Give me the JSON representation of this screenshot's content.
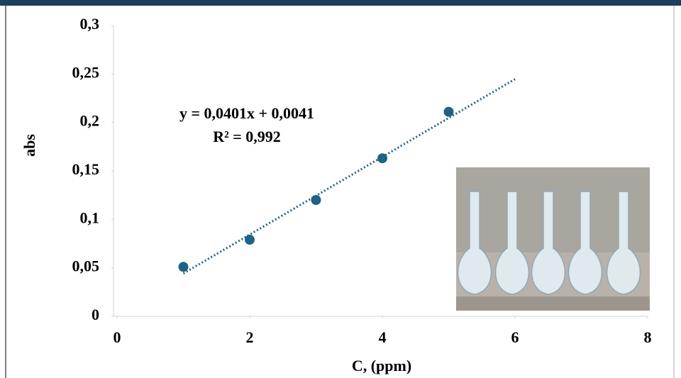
{
  "chart_data": {
    "type": "scatter",
    "x_label": "C, (ppm)",
    "y_label": "abs",
    "series": [
      {
        "name": "abs",
        "color": "#1f6384",
        "x": [
          1,
          2,
          3,
          4,
          5
        ],
        "values": [
          0.051,
          0.079,
          0.12,
          0.163,
          0.211
        ]
      }
    ],
    "trendline": {
      "equation": "y = 0,0401x + 0,0041",
      "r2": "R² = 0,992",
      "slope": 0.0401,
      "intercept": 0.0041,
      "x_range": [
        1,
        6
      ],
      "color": "#1f6384"
    },
    "xlim": [
      0,
      8
    ],
    "xticks": [
      0,
      2,
      4,
      6,
      8
    ],
    "ylim": [
      0,
      0.3
    ],
    "yticks": [
      {
        "value": 0,
        "label": "0"
      },
      {
        "value": 0.05,
        "label": "0,05"
      },
      {
        "value": 0.1,
        "label": "0,1"
      },
      {
        "value": 0.15,
        "label": "0,15"
      },
      {
        "value": 0.2,
        "label": "0,2"
      },
      {
        "value": 0.25,
        "label": "0,25"
      },
      {
        "value": 0.3,
        "label": "0,3"
      }
    ],
    "grid": false
  }
}
